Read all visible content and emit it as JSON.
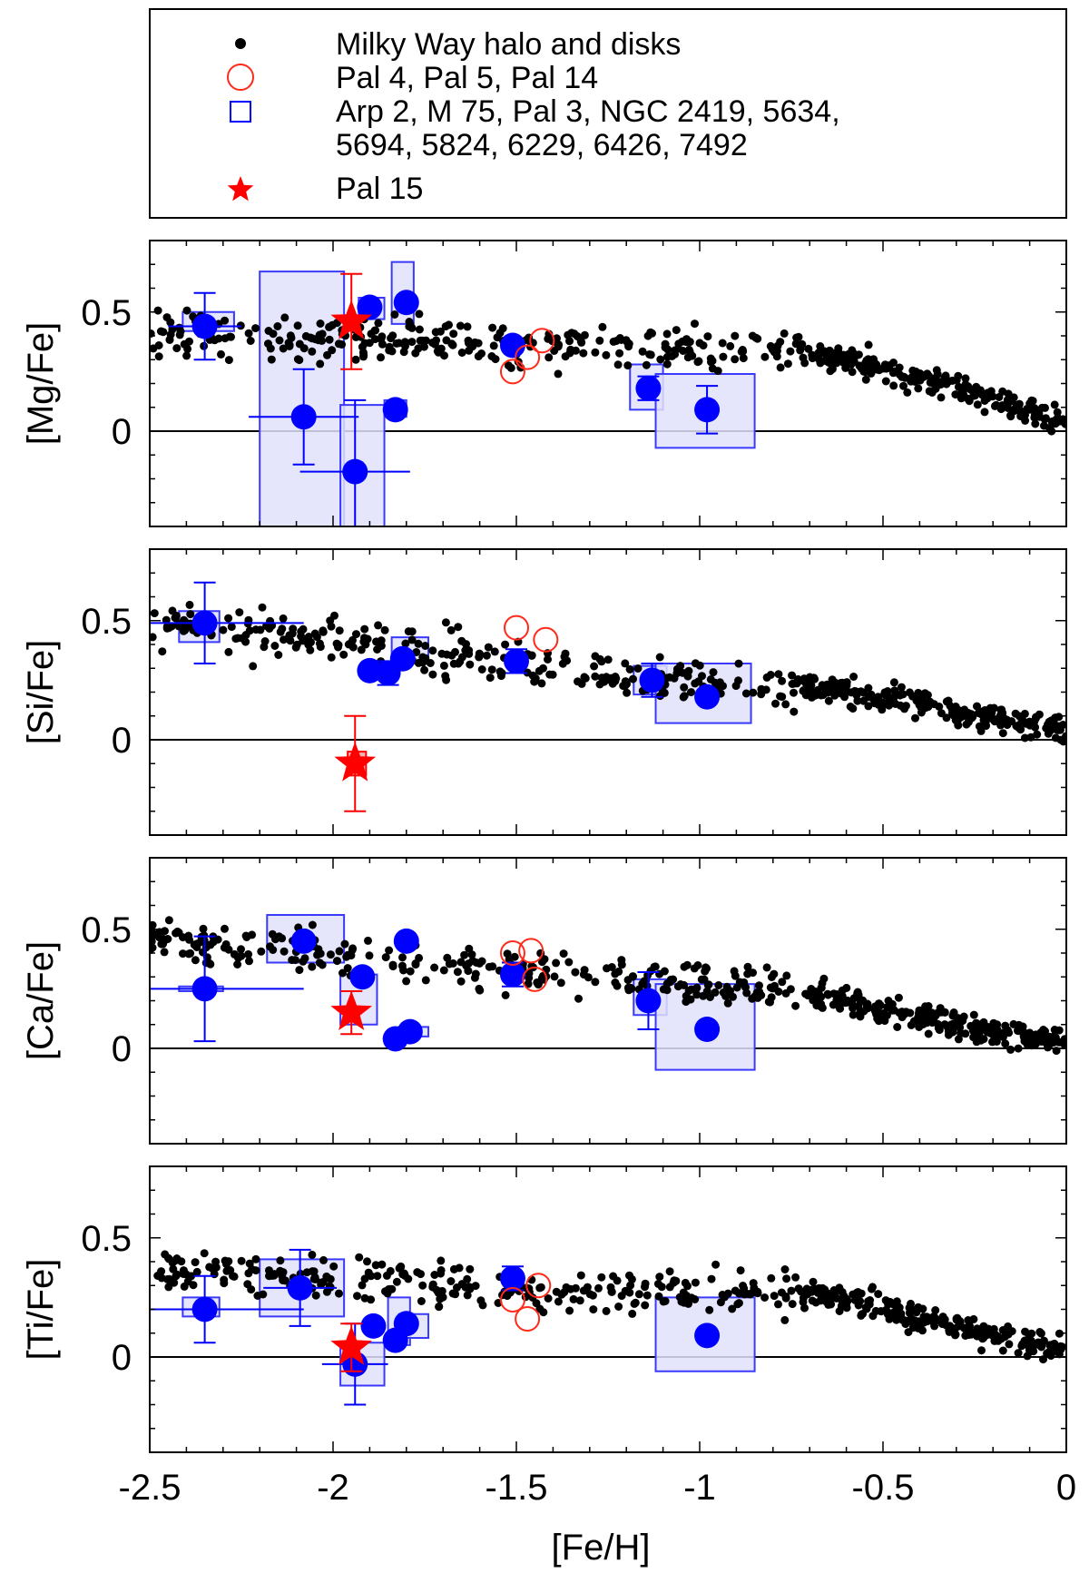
{
  "chart_data": {
    "type": "scatter",
    "xlabel": "[Fe/H]",
    "xlim": [
      -2.5,
      0
    ],
    "xticks": [
      -2.5,
      -2,
      -1.5,
      -1,
      -0.5,
      0
    ],
    "xtick_labels": [
      "-2.5",
      "-2",
      "-1.5",
      "-1",
      "-0.5",
      "0"
    ],
    "ylim": [
      -0.4,
      0.8
    ],
    "yticks": [
      0,
      0.5
    ],
    "ytick_labels": [
      "0",
      "0.5"
    ],
    "grid": false,
    "legend": {
      "placement": "top",
      "entries": [
        {
          "marker": "small-black-dot",
          "label": "Milky Way halo and disks"
        },
        {
          "marker": "open-red-circle",
          "label": "Pal 4, Pal 5, Pal 14"
        },
        {
          "marker": "open-blue-square",
          "label": "Arp 2, M 75, Pal 3, NGC 2419, 5634,",
          "label_line2": "5694, 5824, 6229, 6426, 7492"
        },
        {
          "marker": "red-star",
          "label": "Pal 15"
        }
      ]
    },
    "colors": {
      "milky_way": "#000000",
      "outer_halo_circles": "#ff2a1a",
      "inner_clusters": "#0000ff",
      "box_fill": "#e0e0fa",
      "box_edge": "#3a3aff",
      "pal15": "#ff0000"
    },
    "milky_way_trend": {
      "x": [
        -2.5,
        -2.2,
        -1.8,
        -1.5,
        -1.2,
        -1.0,
        -0.8,
        -0.6,
        -0.4,
        -0.2,
        0.0
      ],
      "mg": [
        0.4,
        0.39,
        0.38,
        0.36,
        0.35,
        0.34,
        0.35,
        0.3,
        0.22,
        0.13,
        0.04
      ],
      "si": [
        0.5,
        0.45,
        0.38,
        0.33,
        0.27,
        0.24,
        0.24,
        0.2,
        0.15,
        0.09,
        0.04
      ],
      "ca": [
        0.47,
        0.42,
        0.37,
        0.33,
        0.29,
        0.28,
        0.26,
        0.2,
        0.13,
        0.07,
        0.03
      ],
      "ti": [
        0.38,
        0.34,
        0.31,
        0.29,
        0.27,
        0.27,
        0.28,
        0.24,
        0.17,
        0.09,
        0.03
      ]
    },
    "panels": [
      {
        "id": "mg",
        "ylabel": "[Mg/Fe]",
        "clusters": [
          {
            "x": -2.35,
            "y": 0.44,
            "xerr": 0.1,
            "yerr": 0.14,
            "box": [
              -2.41,
              -2.27,
              0.42,
              0.5
            ]
          },
          {
            "x": -2.08,
            "y": 0.06,
            "xerr": 0.15,
            "yerr": 0.2,
            "box": [
              -2.2,
              -1.97,
              -0.45,
              0.67
            ]
          },
          {
            "x": -1.94,
            "y": -0.17,
            "xerr": 0.15,
            "yerr": 0.3,
            "box": [
              -1.98,
              -1.86,
              -0.45,
              0.11
            ]
          },
          {
            "x": -1.9,
            "y": 0.52,
            "xerr": 0.0,
            "yerr": 0.0,
            "box": [
              -1.93,
              -1.86,
              0.47,
              0.56
            ]
          },
          {
            "x": -1.83,
            "y": 0.09,
            "xerr": 0.0,
            "yerr": 0.0,
            "box": [
              -1.86,
              -1.8,
              0.06,
              0.13
            ]
          },
          {
            "x": -1.8,
            "y": 0.54,
            "xerr": 0.0,
            "yerr": 0.0,
            "box": [
              -1.84,
              -1.78,
              0.45,
              0.71
            ]
          },
          {
            "x": -1.51,
            "y": 0.36,
            "xerr": 0.0,
            "yerr": 0.0,
            "box": null
          },
          {
            "x": -1.14,
            "y": 0.18,
            "xerr": 0.0,
            "yerr": 0.05,
            "box": [
              -1.19,
              -1.1,
              0.09,
              0.28
            ]
          },
          {
            "x": -0.98,
            "y": 0.09,
            "xerr": 0.0,
            "yerr": 0.1,
            "box": [
              -1.12,
              -0.85,
              -0.07,
              0.24
            ]
          }
        ],
        "outer_circles": [
          {
            "x": -1.51,
            "y": 0.25
          },
          {
            "x": -1.47,
            "y": 0.31
          },
          {
            "x": -1.43,
            "y": 0.38
          }
        ],
        "pal15": {
          "x": -1.95,
          "y": 0.46,
          "yerr": 0.2
        }
      },
      {
        "id": "si",
        "ylabel": "[Si/Fe]",
        "clusters": [
          {
            "x": -2.35,
            "y": 0.49,
            "xerr": 0.27,
            "yerr": 0.17,
            "box": [
              -2.42,
              -2.31,
              0.41,
              0.54
            ]
          },
          {
            "x": -1.9,
            "y": 0.29,
            "xerr": 0.0,
            "yerr": 0.0,
            "box": null
          },
          {
            "x": -1.85,
            "y": 0.28,
            "xerr": 0.0,
            "yerr": 0.05,
            "box": null
          },
          {
            "x": -1.81,
            "y": 0.34,
            "xerr": 0.0,
            "yerr": 0.0,
            "box": [
              -1.84,
              -1.74,
              0.33,
              0.43
            ]
          },
          {
            "x": -1.5,
            "y": 0.33,
            "xerr": 0.0,
            "yerr": 0.05,
            "box": null
          },
          {
            "x": -1.13,
            "y": 0.25,
            "xerr": 0.0,
            "yerr": 0.07,
            "box": [
              -1.18,
              -1.09,
              0.19,
              0.31
            ]
          },
          {
            "x": -0.98,
            "y": 0.18,
            "xerr": 0.0,
            "yerr": 0.0,
            "box": [
              -1.12,
              -0.86,
              0.07,
              0.32
            ]
          }
        ],
        "outer_circles": [
          {
            "x": -1.5,
            "y": 0.47
          },
          {
            "x": -1.42,
            "y": 0.42
          }
        ],
        "pal15": {
          "x": -1.94,
          "y": -0.1,
          "yerr": 0.2,
          "box": [
            -1.96,
            -1.91,
            -0.15,
            -0.05
          ]
        }
      },
      {
        "id": "ca",
        "ylabel": "[Ca/Fe]",
        "clusters": [
          {
            "x": -2.35,
            "y": 0.25,
            "xerr": 0.27,
            "yerr": 0.22,
            "box": [
              -2.42,
              -2.3,
              0.24,
              0.26
            ]
          },
          {
            "x": -2.08,
            "y": 0.45,
            "xerr": 0.0,
            "yerr": 0.0,
            "box": [
              -2.18,
              -1.97,
              0.36,
              0.56
            ]
          },
          {
            "x": -1.92,
            "y": 0.3,
            "xerr": 0.0,
            "yerr": 0.0,
            "box": [
              -1.98,
              -1.88,
              0.1,
              0.31
            ]
          },
          {
            "x": -1.83,
            "y": 0.04,
            "xerr": 0.0,
            "yerr": 0.0,
            "box": null
          },
          {
            "x": -1.79,
            "y": 0.07,
            "xerr": 0.0,
            "yerr": 0.0,
            "box": [
              -1.82,
              -1.74,
              0.05,
              0.09
            ]
          },
          {
            "x": -1.8,
            "y": 0.45,
            "xerr": 0.0,
            "yerr": 0.0,
            "box": null
          },
          {
            "x": -1.51,
            "y": 0.31,
            "xerr": 0.0,
            "yerr": 0.05,
            "box": null
          },
          {
            "x": -1.14,
            "y": 0.2,
            "xerr": 0.0,
            "yerr": 0.12,
            "box": [
              -1.18,
              -1.09,
              0.14,
              0.29
            ]
          },
          {
            "x": -0.98,
            "y": 0.08,
            "xerr": 0.0,
            "yerr": 0.0,
            "box": [
              -1.12,
              -0.85,
              -0.09,
              0.27
            ]
          }
        ],
        "outer_circles": [
          {
            "x": -1.51,
            "y": 0.4
          },
          {
            "x": -1.46,
            "y": 0.41
          },
          {
            "x": -1.45,
            "y": 0.29
          }
        ],
        "pal15": {
          "x": -1.95,
          "y": 0.15,
          "yerr": 0.09
        }
      },
      {
        "id": "ti",
        "ylabel": "[Ti/Fe]",
        "clusters": [
          {
            "x": -2.35,
            "y": 0.2,
            "xerr": 0.27,
            "yerr": 0.14,
            "box": [
              -2.41,
              -2.31,
              0.17,
              0.25
            ]
          },
          {
            "x": -2.09,
            "y": 0.29,
            "xerr": 0.1,
            "yerr": 0.16,
            "box": [
              -2.2,
              -1.97,
              0.17,
              0.41
            ]
          },
          {
            "x": -1.94,
            "y": -0.03,
            "xerr": 0.09,
            "yerr": 0.17,
            "box": [
              -1.98,
              -1.86,
              -0.12,
              0.06
            ]
          },
          {
            "x": -1.89,
            "y": 0.13,
            "xerr": 0.0,
            "yerr": 0.0,
            "box": null
          },
          {
            "x": -1.83,
            "y": 0.07,
            "xerr": 0.0,
            "yerr": 0.0,
            "box": [
              -1.85,
              -1.79,
              0.05,
              0.25
            ]
          },
          {
            "x": -1.8,
            "y": 0.14,
            "xerr": 0.0,
            "yerr": 0.0,
            "box": [
              -1.82,
              -1.74,
              0.08,
              0.18
            ]
          },
          {
            "x": -1.51,
            "y": 0.33,
            "xerr": 0.0,
            "yerr": 0.05,
            "box": null
          },
          {
            "x": -0.98,
            "y": 0.09,
            "xerr": 0.0,
            "yerr": 0.0,
            "box": [
              -1.12,
              -0.85,
              -0.06,
              0.25
            ]
          }
        ],
        "outer_circles": [
          {
            "x": -1.51,
            "y": 0.24
          },
          {
            "x": -1.47,
            "y": 0.16
          },
          {
            "x": -1.44,
            "y": 0.3
          }
        ],
        "pal15": {
          "x": -1.95,
          "y": 0.04,
          "yerr": 0.1
        }
      }
    ]
  }
}
